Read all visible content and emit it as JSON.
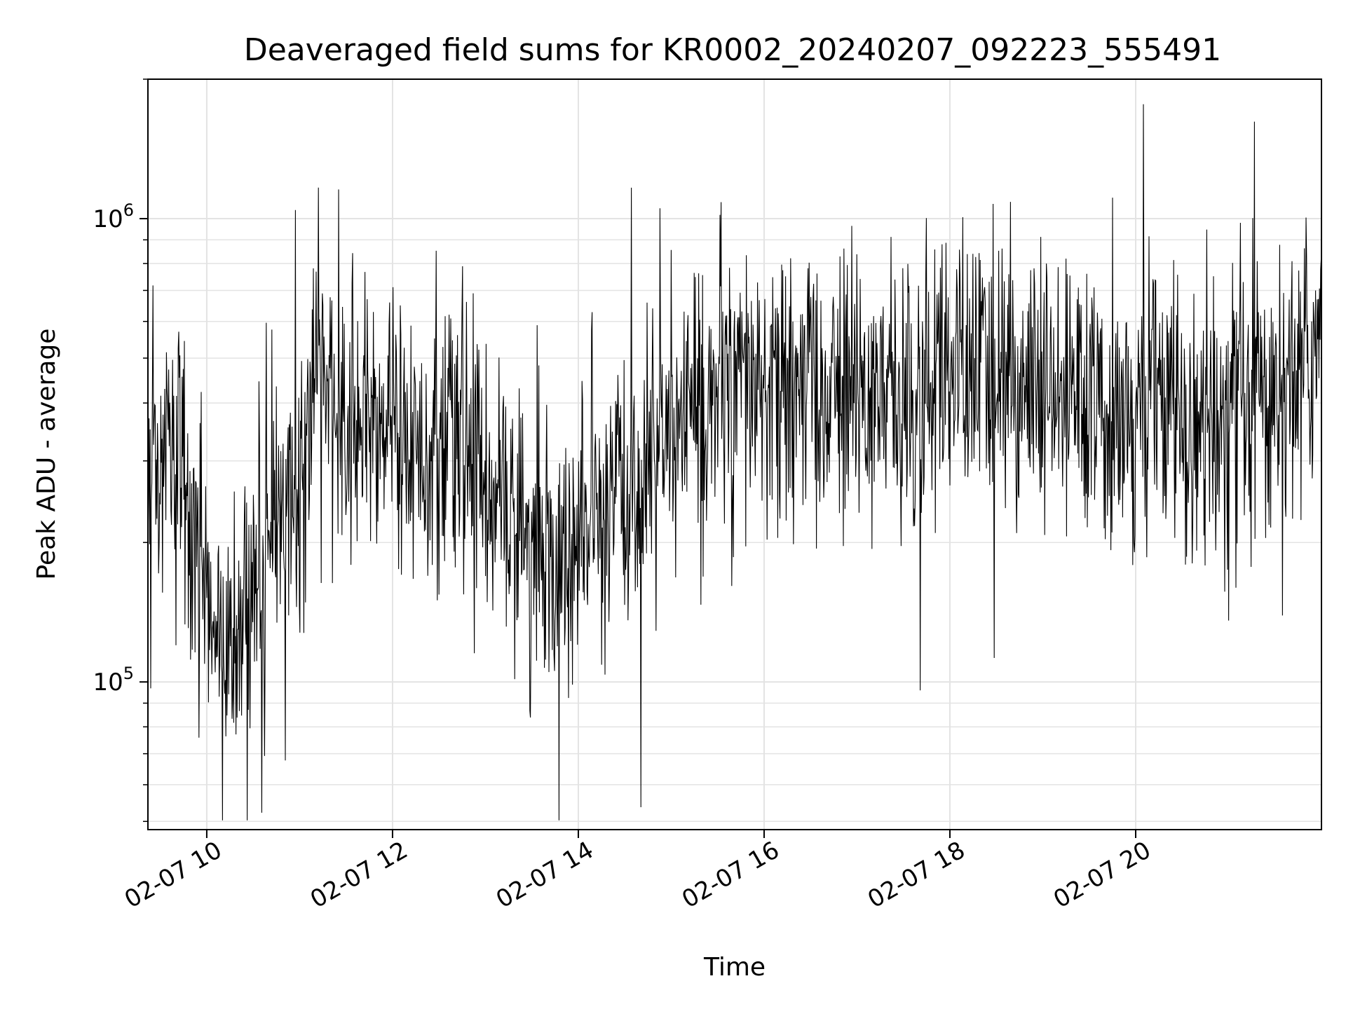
{
  "chart_data": {
    "type": "line",
    "title": "Deaveraged field sums for KR0002_20240207_092223_555491",
    "xlabel": "Time",
    "ylabel": "Peak ADU - average",
    "yscale": "log",
    "xlim": [
      "2024-02-07T09:22",
      "2024-02-07T22:00"
    ],
    "ylim": [
      48000,
      2000000
    ],
    "grid": true,
    "line_color": "#000000",
    "grid_color": "#e3e3e3",
    "x_ticks": [
      {
        "value": "2024-02-07T10:00",
        "label": "02-07 10"
      },
      {
        "value": "2024-02-07T12:00",
        "label": "02-07 12"
      },
      {
        "value": "2024-02-07T14:00",
        "label": "02-07 14"
      },
      {
        "value": "2024-02-07T16:00",
        "label": "02-07 16"
      },
      {
        "value": "2024-02-07T18:00",
        "label": "02-07 18"
      },
      {
        "value": "2024-02-07T20:00",
        "label": "02-07 20"
      }
    ],
    "y_ticks": [
      {
        "value": 100000,
        "base": "10",
        "exp": "5"
      },
      {
        "value": 1000000,
        "base": "10",
        "exp": "6"
      }
    ],
    "series": [
      {
        "x": [
          "2024-02-07T09:22",
          "2024-02-07T09:30",
          "2024-02-07T09:40",
          "2024-02-07T09:50",
          "2024-02-07T10:00",
          "2024-02-07T10:10",
          "2024-02-07T10:20",
          "2024-02-07T10:30",
          "2024-02-07T10:45",
          "2024-02-07T11:00",
          "2024-02-07T11:10",
          "2024-02-07T11:20",
          "2024-02-07T11:30",
          "2024-02-07T11:45",
          "2024-02-07T12:00",
          "2024-02-07T12:15",
          "2024-02-07T12:30",
          "2024-02-07T12:45",
          "2024-02-07T13:00",
          "2024-02-07T13:15",
          "2024-02-07T13:30",
          "2024-02-07T13:45",
          "2024-02-07T14:00",
          "2024-02-07T14:15",
          "2024-02-07T14:30",
          "2024-02-07T14:45",
          "2024-02-07T15:00",
          "2024-02-07T15:15",
          "2024-02-07T15:30",
          "2024-02-07T15:45",
          "2024-02-07T16:00",
          "2024-02-07T16:15",
          "2024-02-07T16:30",
          "2024-02-07T16:45",
          "2024-02-07T17:00",
          "2024-02-07T17:15",
          "2024-02-07T17:30",
          "2024-02-07T17:45",
          "2024-02-07T18:00",
          "2024-02-07T18:15",
          "2024-02-07T18:30",
          "2024-02-07T18:45",
          "2024-02-07T19:00",
          "2024-02-07T19:15",
          "2024-02-07T19:30",
          "2024-02-07T19:45",
          "2024-02-07T20:00",
          "2024-02-07T20:15",
          "2024-02-07T20:30",
          "2024-02-07T20:45",
          "2024-02-07T21:00",
          "2024-02-07T21:15",
          "2024-02-07T21:30",
          "2024-02-07T21:45",
          "2024-02-07T22:00"
        ],
        "y": [
          300000,
          280000,
          330000,
          250000,
          130000,
          115000,
          120000,
          160000,
          250000,
          240000,
          480000,
          420000,
          350000,
          380000,
          360000,
          340000,
          300000,
          330000,
          280000,
          240000,
          190000,
          170000,
          200000,
          230000,
          250000,
          290000,
          330000,
          380000,
          420000,
          430000,
          420000,
          410000,
          430000,
          410000,
          410000,
          420000,
          430000,
          440000,
          460000,
          470000,
          450000,
          440000,
          400000,
          390000,
          370000,
          360000,
          380000,
          400000,
          370000,
          360000,
          350000,
          380000,
          430000,
          480000,
          560000
        ]
      }
    ]
  }
}
